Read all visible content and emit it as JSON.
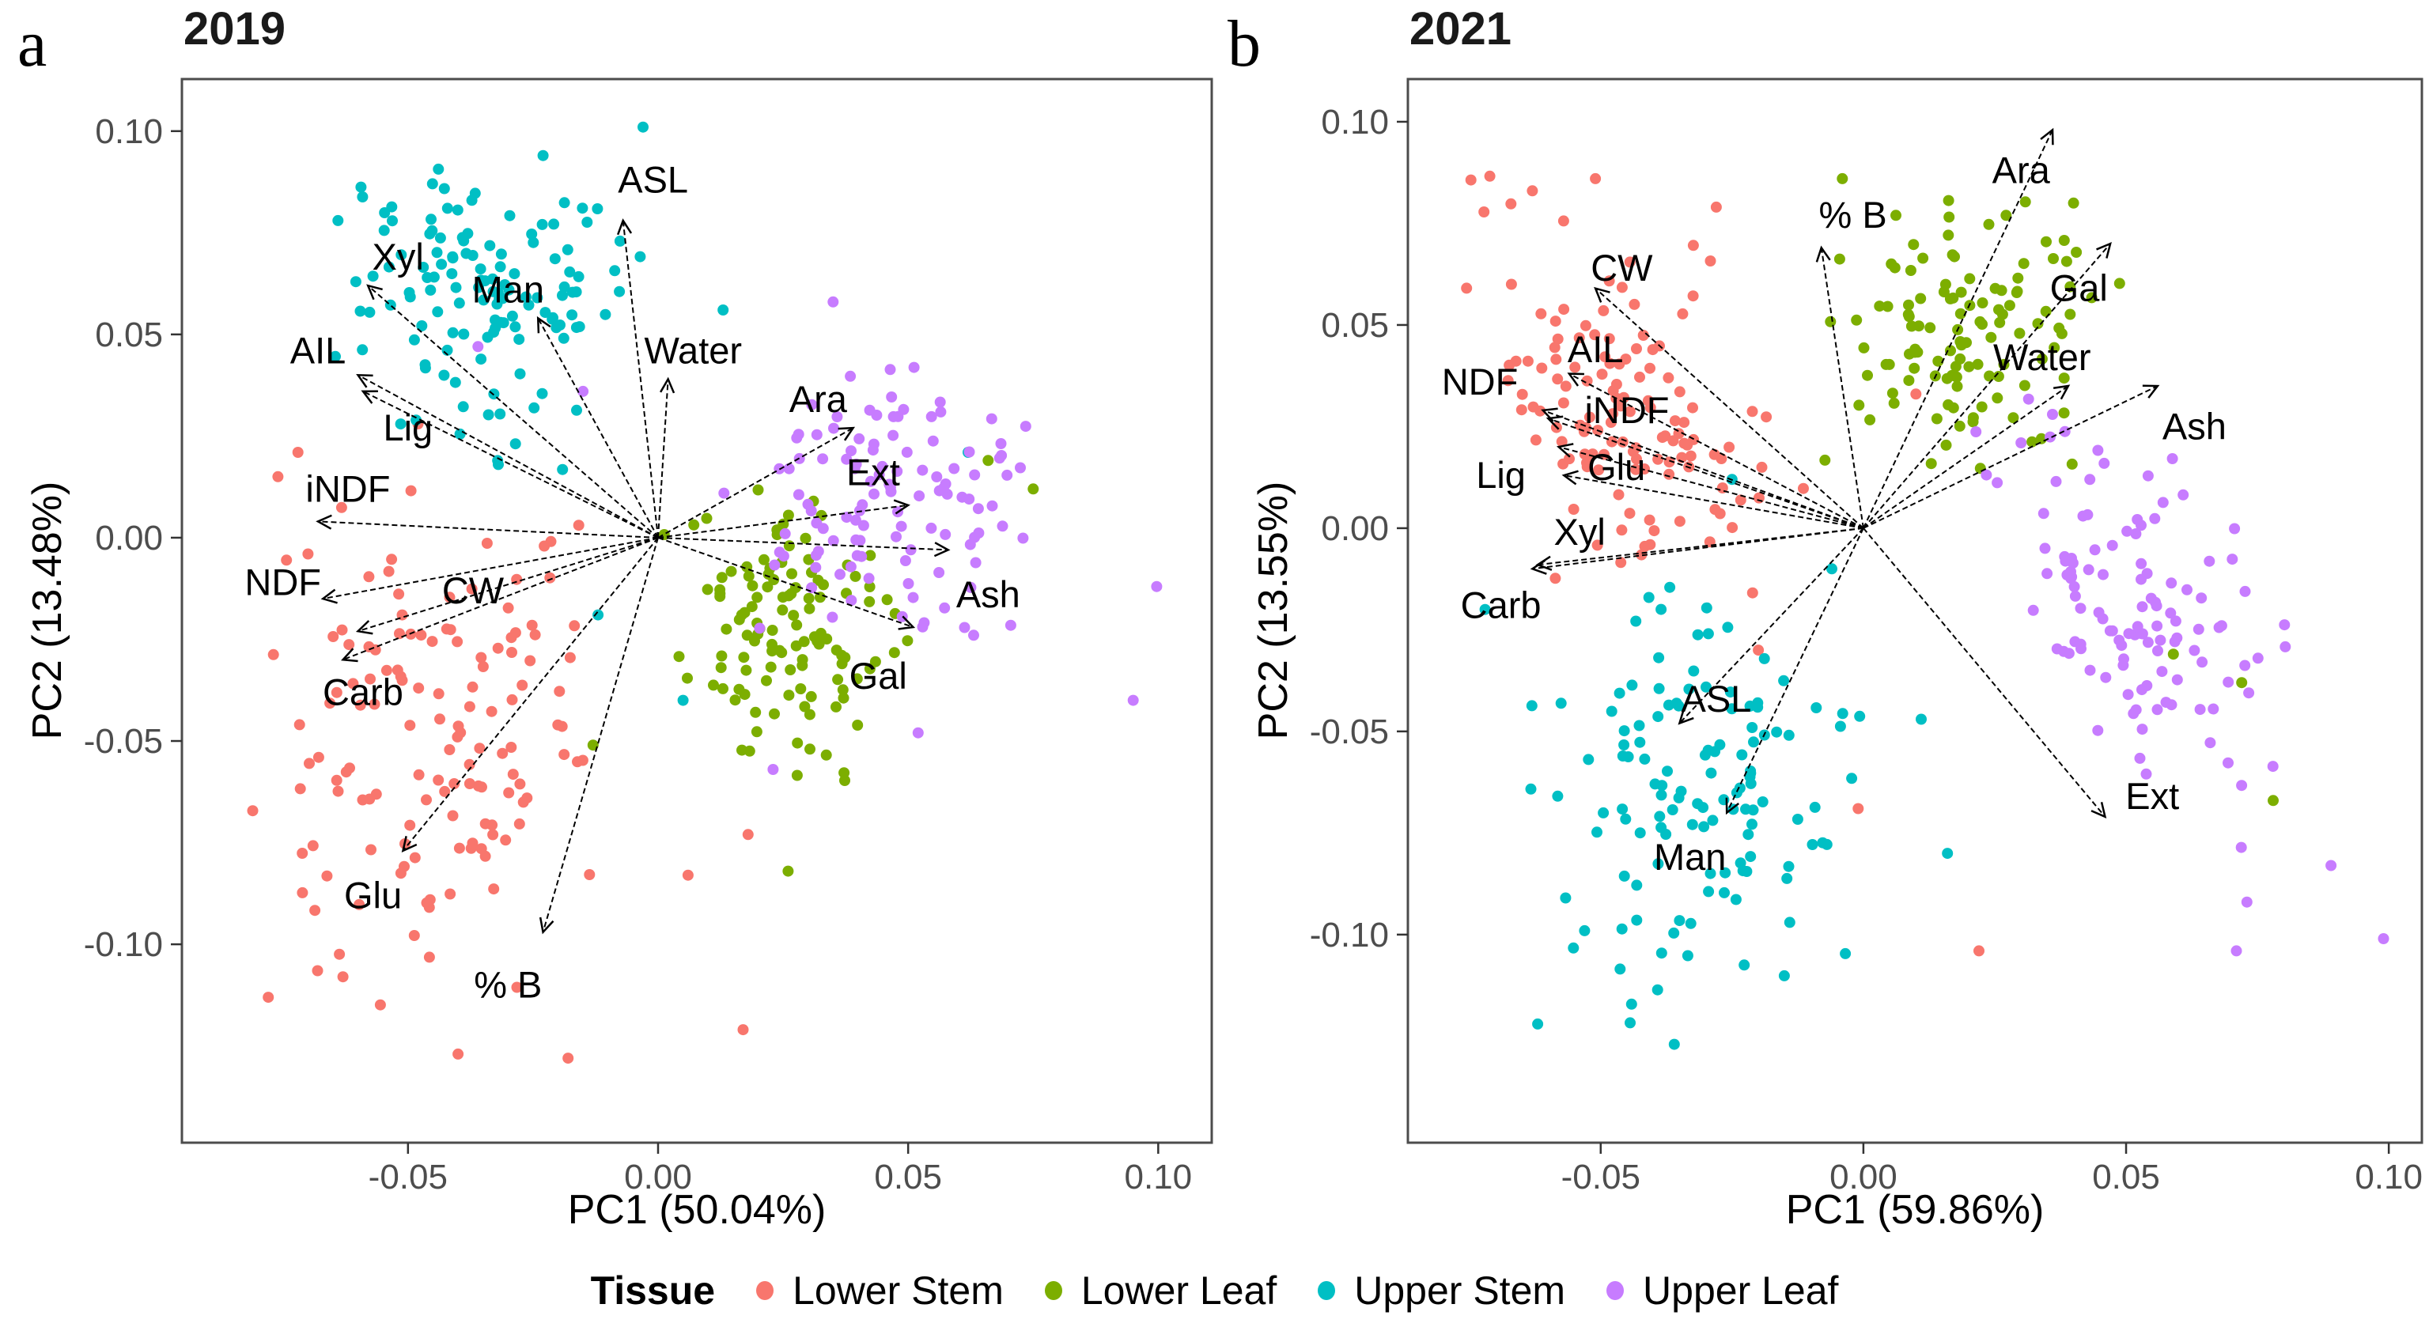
{
  "figure": {
    "background": "#ffffff",
    "border_color": "#4c4c4c",
    "tick_color": "#333333",
    "tick_label_color": "#4d4d4d",
    "arrow_color": "#000000",
    "panel_a_letter": "a",
    "panel_b_letter": "b"
  },
  "legend": {
    "title": "Tissue",
    "items": [
      {
        "label": "Lower Stem",
        "color": "#F8766D"
      },
      {
        "label": "Lower Leaf",
        "color": "#7CAE00"
      },
      {
        "label": "Upper Stem",
        "color": "#00BFC4"
      },
      {
        "label": "Upper Leaf",
        "color": "#C77CFF"
      }
    ]
  },
  "chart_data": [
    {
      "type": "scatter",
      "panel_letter": "a",
      "title": "2019",
      "xlabel": "PC1 (50.04%)",
      "ylabel": "PC2 (13.48%)",
      "xlim": [
        -0.0952,
        0.1107
      ],
      "ylim": [
        -0.1488,
        0.1128
      ],
      "xticks": [
        "-0.05",
        "0.00",
        "0.05",
        "0.10"
      ],
      "xtick_vals": [
        -0.05,
        0.0,
        0.05,
        0.1
      ],
      "yticks": [
        "0.10",
        "0.05",
        "0.00",
        "-0.05",
        "-0.10"
      ],
      "ytick_vals": [
        0.1,
        0.05,
        0.0,
        -0.05,
        -0.1
      ],
      "grid": false,
      "legend_position": "bottom",
      "groups": [
        {
          "name": "Lower Stem",
          "color": "#F8766D",
          "n": 135,
          "center": [
            -0.044,
            -0.05
          ],
          "sd": [
            0.016,
            0.027
          ],
          "corr": 0.05,
          "seed": 101,
          "extra": [
            [
              -0.072,
              0.021
            ],
            [
              -0.076,
              0.015
            ],
            [
              -0.07,
              -0.004
            ],
            [
              -0.063,
              -0.108
            ],
            [
              -0.04,
              -0.127
            ],
            [
              -0.018,
              -0.128
            ],
            [
              0.006,
              -0.083
            ],
            [
              0.018,
              -0.073
            ],
            [
              0.017,
              -0.121
            ],
            [
              -0.048,
              0.028
            ]
          ]
        },
        {
          "name": "Lower Leaf",
          "color": "#7CAE00",
          "n": 120,
          "center": [
            0.026,
            -0.023
          ],
          "sd": [
            0.011,
            0.016
          ],
          "corr": -0.2,
          "seed": 103,
          "extra": [
            [
              0.066,
              0.019
            ],
            [
              0.075,
              0.012
            ],
            [
              0.026,
              -0.082
            ],
            [
              -0.013,
              -0.051
            ]
          ]
        },
        {
          "name": "Upper Stem",
          "color": "#00BFC4",
          "n": 130,
          "center": [
            -0.034,
            0.058
          ],
          "sd": [
            0.014,
            0.018
          ],
          "corr": -0.25,
          "seed": 102,
          "extra": [
            [
              -0.003,
              0.101
            ],
            [
              -0.023,
              0.094
            ],
            [
              -0.064,
              0.078
            ],
            [
              0.013,
              0.056
            ],
            [
              0.062,
              0.021
            ],
            [
              -0.012,
              -0.019
            ],
            [
              0.005,
              -0.04
            ]
          ]
        },
        {
          "name": "Upper Leaf",
          "color": "#C77CFF",
          "n": 115,
          "center": [
            0.045,
            0.01
          ],
          "sd": [
            0.014,
            0.016
          ],
          "corr": -0.15,
          "seed": 104,
          "extra": [
            [
              0.0997,
              -0.012
            ],
            [
              0.095,
              -0.04
            ],
            [
              0.035,
              0.058
            ],
            [
              -0.036,
              0.047
            ],
            [
              -0.015,
              0.036
            ],
            [
              0.023,
              -0.057
            ],
            [
              0.052,
              -0.048
            ]
          ]
        }
      ],
      "loadings": [
        {
          "label": "ASL",
          "tip": [
            -0.007,
            0.078
          ],
          "text": [
            -0.001,
            0.088
          ]
        },
        {
          "label": "Xyl",
          "tip": [
            -0.058,
            0.062
          ],
          "text": [
            -0.052,
            0.069
          ]
        },
        {
          "label": "Man",
          "tip": [
            -0.024,
            0.054
          ],
          "text": [
            -0.03,
            0.061
          ]
        },
        {
          "label": "Water",
          "tip": [
            0.002,
            0.039
          ],
          "text": [
            0.007,
            0.046
          ]
        },
        {
          "label": "AIL",
          "tip": [
            -0.06,
            0.04
          ],
          "text": [
            -0.068,
            0.046
          ]
        },
        {
          "label": "Lig",
          "tip": [
            -0.059,
            0.036
          ],
          "text": [
            -0.05,
            0.027
          ]
        },
        {
          "label": "iNDF",
          "tip": [
            -0.068,
            0.004
          ],
          "text": [
            -0.062,
            0.012
          ]
        },
        {
          "label": "NDF",
          "tip": [
            -0.067,
            -0.015
          ],
          "text": [
            -0.075,
            -0.011
          ]
        },
        {
          "label": "CW",
          "tip": [
            -0.06,
            -0.023
          ],
          "text": [
            -0.037,
            -0.013
          ]
        },
        {
          "label": "Carb",
          "tip": [
            -0.063,
            -0.03
          ],
          "text": [
            -0.059,
            -0.038
          ]
        },
        {
          "label": "Glu",
          "tip": [
            -0.051,
            -0.077
          ],
          "text": [
            -0.057,
            -0.088
          ]
        },
        {
          "label": "% B",
          "tip": [
            -0.023,
            -0.097
          ],
          "text": [
            -0.03,
            -0.11
          ]
        },
        {
          "label": "Ara",
          "tip": [
            0.039,
            0.027
          ],
          "text": [
            0.032,
            0.034
          ]
        },
        {
          "label": "Ext",
          "tip": [
            0.05,
            0.008
          ],
          "text": [
            0.043,
            0.016
          ]
        },
        {
          "label": "Ash",
          "tip": [
            0.058,
            -0.003
          ],
          "text": [
            0.066,
            -0.014
          ]
        },
        {
          "label": "Gal",
          "tip": [
            0.051,
            -0.022
          ],
          "text": [
            0.044,
            -0.034
          ]
        }
      ]
    },
    {
      "type": "scatter",
      "panel_letter": "b",
      "title": "2021",
      "xlabel": "PC1 (59.86%)",
      "ylabel": "PC2 (13.55%)",
      "xlim": [
        -0.0867,
        0.1063
      ],
      "ylim": [
        -0.1512,
        0.1105
      ],
      "xticks": [
        "-0.05",
        "0.00",
        "0.05",
        "0.10"
      ],
      "xtick_vals": [
        -0.05,
        0.0,
        0.05,
        0.1
      ],
      "yticks": [
        "0.10",
        "0.05",
        "0.00",
        "-0.05",
        "-0.10"
      ],
      "ytick_vals": [
        0.1,
        0.05,
        0.0,
        -0.05,
        -0.1
      ],
      "grid": false,
      "legend_position": "bottom",
      "groups": [
        {
          "name": "Lower Stem",
          "color": "#F8766D",
          "n": 130,
          "center": [
            -0.045,
            0.03
          ],
          "sd": [
            0.014,
            0.022
          ],
          "corr": -0.25,
          "seed": 201,
          "extra": [
            [
              -0.063,
              0.083
            ],
            [
              -0.051,
              0.086
            ],
            [
              -0.028,
              0.079
            ],
            [
              -0.067,
              0.06
            ],
            [
              0.01,
              0.033
            ],
            [
              -0.001,
              -0.069
            ],
            [
              0.022,
              -0.104
            ],
            [
              -0.02,
              -0.03
            ]
          ]
        },
        {
          "name": "Lower Leaf",
          "color": "#7CAE00",
          "n": 115,
          "center": [
            0.018,
            0.047
          ],
          "sd": [
            0.013,
            0.015
          ],
          "corr": 0.15,
          "seed": 203,
          "extra": [
            [
              0.059,
              -0.031
            ],
            [
              0.072,
              -0.038
            ],
            [
              -0.004,
              0.086
            ],
            [
              0.04,
              0.08
            ],
            [
              0.078,
              -0.067
            ]
          ]
        },
        {
          "name": "Upper Stem",
          "color": "#00BFC4",
          "n": 125,
          "center": [
            -0.033,
            -0.062
          ],
          "sd": [
            0.015,
            0.026
          ],
          "corr": 0.05,
          "seed": 202,
          "extra": [
            [
              -0.072,
              -0.02
            ],
            [
              -0.062,
              -0.122
            ],
            [
              -0.036,
              -0.127
            ],
            [
              0.011,
              -0.047
            ],
            [
              0.016,
              -0.08
            ],
            [
              -0.006,
              -0.01
            ],
            [
              -0.025,
              0.012
            ]
          ]
        },
        {
          "name": "Upper Leaf",
          "color": "#C77CFF",
          "n": 115,
          "center": [
            0.052,
            -0.02
          ],
          "sd": [
            0.014,
            0.024
          ],
          "corr": -0.45,
          "seed": 204,
          "extra": [
            [
              0.099,
              -0.101
            ],
            [
              0.036,
              0.028
            ],
            [
              0.03,
              0.021
            ],
            [
              0.073,
              -0.092
            ],
            [
              0.071,
              -0.104
            ],
            [
              0.089,
              -0.083
            ]
          ]
        }
      ],
      "loadings": [
        {
          "label": "% B",
          "tip": [
            -0.008,
            0.069
          ],
          "text": [
            -0.002,
            0.077
          ]
        },
        {
          "label": "Ara",
          "tip": [
            0.036,
            0.098
          ],
          "text": [
            0.03,
            0.088
          ]
        },
        {
          "label": "Gal",
          "tip": [
            0.047,
            0.07
          ],
          "text": [
            0.041,
            0.059
          ]
        },
        {
          "label": "Water",
          "tip": [
            0.039,
            0.035
          ],
          "text": [
            0.034,
            0.042
          ]
        },
        {
          "label": "Ash",
          "tip": [
            0.056,
            0.035
          ],
          "text": [
            0.063,
            0.025
          ]
        },
        {
          "label": "Ext",
          "tip": [
            0.046,
            -0.071
          ],
          "text": [
            0.055,
            -0.066
          ]
        },
        {
          "label": "CW",
          "tip": [
            -0.051,
            0.059
          ],
          "text": [
            -0.046,
            0.064
          ]
        },
        {
          "label": "AIL",
          "tip": [
            -0.056,
            0.038
          ],
          "text": [
            -0.051,
            0.044
          ]
        },
        {
          "label": "NDF",
          "tip": [
            -0.061,
            0.029
          ],
          "text": [
            -0.073,
            0.036
          ]
        },
        {
          "label": "iNDF",
          "tip": [
            -0.06,
            0.027
          ],
          "text": [
            -0.045,
            0.029
          ]
        },
        {
          "label": "Lig",
          "tip": [
            -0.058,
            0.02
          ],
          "text": [
            -0.069,
            0.013
          ]
        },
        {
          "label": "Glu",
          "tip": [
            -0.057,
            0.013
          ],
          "text": [
            -0.047,
            0.015
          ]
        },
        {
          "label": "Xyl",
          "tip": [
            -0.062,
            -0.009
          ],
          "text": [
            -0.054,
            -0.001
          ]
        },
        {
          "label": "Carb",
          "tip": [
            -0.063,
            -0.01
          ],
          "text": [
            -0.069,
            -0.019
          ]
        },
        {
          "label": "ASL",
          "tip": [
            -0.035,
            -0.048
          ],
          "text": [
            -0.028,
            -0.042
          ]
        },
        {
          "label": "Man",
          "tip": [
            -0.026,
            -0.07
          ],
          "text": [
            -0.033,
            -0.081
          ]
        }
      ]
    }
  ]
}
